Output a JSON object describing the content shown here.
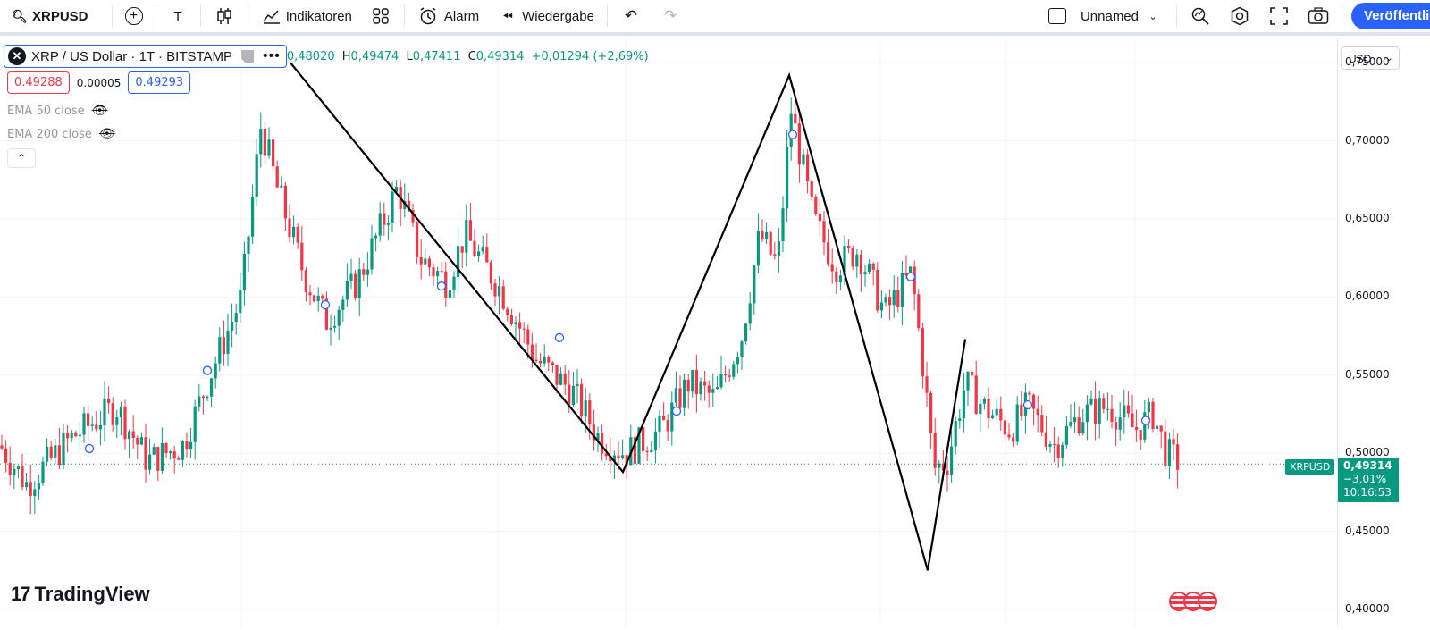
{
  "toolbar": {
    "symbol": "XRPUSD",
    "interval": "T",
    "indicators_label": "Indikatoren",
    "alert_label": "Alarm",
    "replay_label": "Wiedergabe",
    "layout_name": "Unnamed",
    "publish_label": "Veröffentlichen"
  },
  "legend": {
    "title": "XRP / US Dollar · 1T · BITSTAMP",
    "ohlc_open_value": "0,48020",
    "ohlc_high_key": "H",
    "ohlc_high_value": "0,49474",
    "ohlc_low_key": "L",
    "ohlc_low_value": "0,47411",
    "ohlc_close_key": "C",
    "ohlc_close_value": "0,49314",
    "change": "+0,01294 (+2,69%)",
    "bid": "0.49288",
    "spread": "0.00005",
    "ask": "0.49293",
    "ema50": "EMA 50 close",
    "ema200": "EMA 200 close"
  },
  "price_axis": {
    "currency": "USD",
    "ticks": [
      "0,75000",
      "0,70000",
      "0,65000",
      "0,60000",
      "0,55000",
      "0,50000",
      "0,45000",
      "0,40000"
    ],
    "last_price": "0,49314",
    "last_change": "−3,01%",
    "countdown": "10:16:53",
    "symbol_tag": "XRPUSD"
  },
  "branding": {
    "logo_text": "TradingView"
  },
  "chart_data": {
    "type": "candlestick",
    "y_range": [
      0.4,
      0.765
    ],
    "pattern_line_points": [
      {
        "index": 0,
        "price": 0.75
      },
      {
        "index": 1,
        "price": 0.488
      },
      {
        "index": 2,
        "price": 0.742
      },
      {
        "index": 3,
        "price": 0.425
      },
      {
        "index": 4,
        "price": 0.573
      }
    ],
    "last_close": 0.49314
  },
  "colors": {
    "up": "#089981",
    "down": "#f23645",
    "accent": "#2962ff"
  }
}
